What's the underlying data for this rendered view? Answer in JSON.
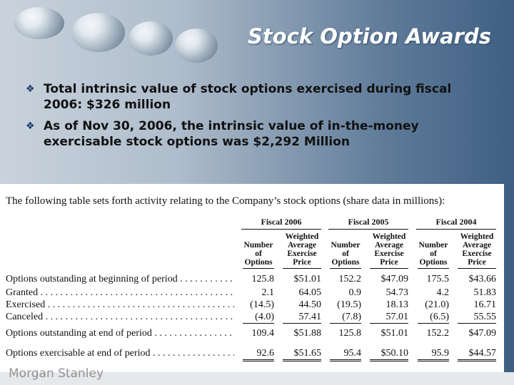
{
  "header": {
    "title": "Stock Option Awards"
  },
  "bullets": [
    "Total intrinsic value of stock options exercised during fiscal 2006: $326 million",
    "As of Nov 30, 2006, the intrinsic value of in-the-money exercisable stock options was $2,292 Million"
  ],
  "table": {
    "intro": "The following table sets forth activity relating to the Company’s stock options (share data in millions):",
    "groups": [
      {
        "title": "Fiscal 2006",
        "columns": [
          "Number of Options",
          "Weighted Average Exercise Price"
        ]
      },
      {
        "title": "Fiscal 2005",
        "columns": [
          "Number of Options",
          "Weighted Average Exercise Price"
        ]
      },
      {
        "title": "Fiscal 2004",
        "columns": [
          "Number of Options",
          "Weighted Average Exercise Price"
        ]
      }
    ],
    "rows": [
      {
        "label": "Options outstanding at beginning of period",
        "cells": [
          "125.8",
          "$51.01",
          "152.2",
          "$47.09",
          "175.5",
          "$43.66"
        ]
      },
      {
        "label": "Granted",
        "cells": [
          "2.1",
          "64.05",
          "0.9",
          "54.73",
          "4.2",
          "51.83"
        ]
      },
      {
        "label": "Exercised",
        "cells": [
          "(14.5)",
          "44.50",
          "(19.5)",
          "18.13",
          "(21.0)",
          "16.71"
        ]
      },
      {
        "label": "Canceled",
        "cells": [
          "(4.0)",
          "57.41",
          "(7.8)",
          "57.01",
          "(6.5)",
          "55.55"
        ]
      },
      {
        "label": "Options outstanding at end of period",
        "cells": [
          "109.4",
          "$51.88",
          "125.8",
          "$51.01",
          "152.2",
          "$47.09"
        ]
      },
      {
        "label": "Options exercisable at end of period",
        "cells": [
          "92.6",
          "$51.65",
          "95.4",
          "$50.10",
          "95.9",
          "$44.57"
        ]
      }
    ]
  },
  "footer": {
    "logo": "Morgan Stanley"
  }
}
